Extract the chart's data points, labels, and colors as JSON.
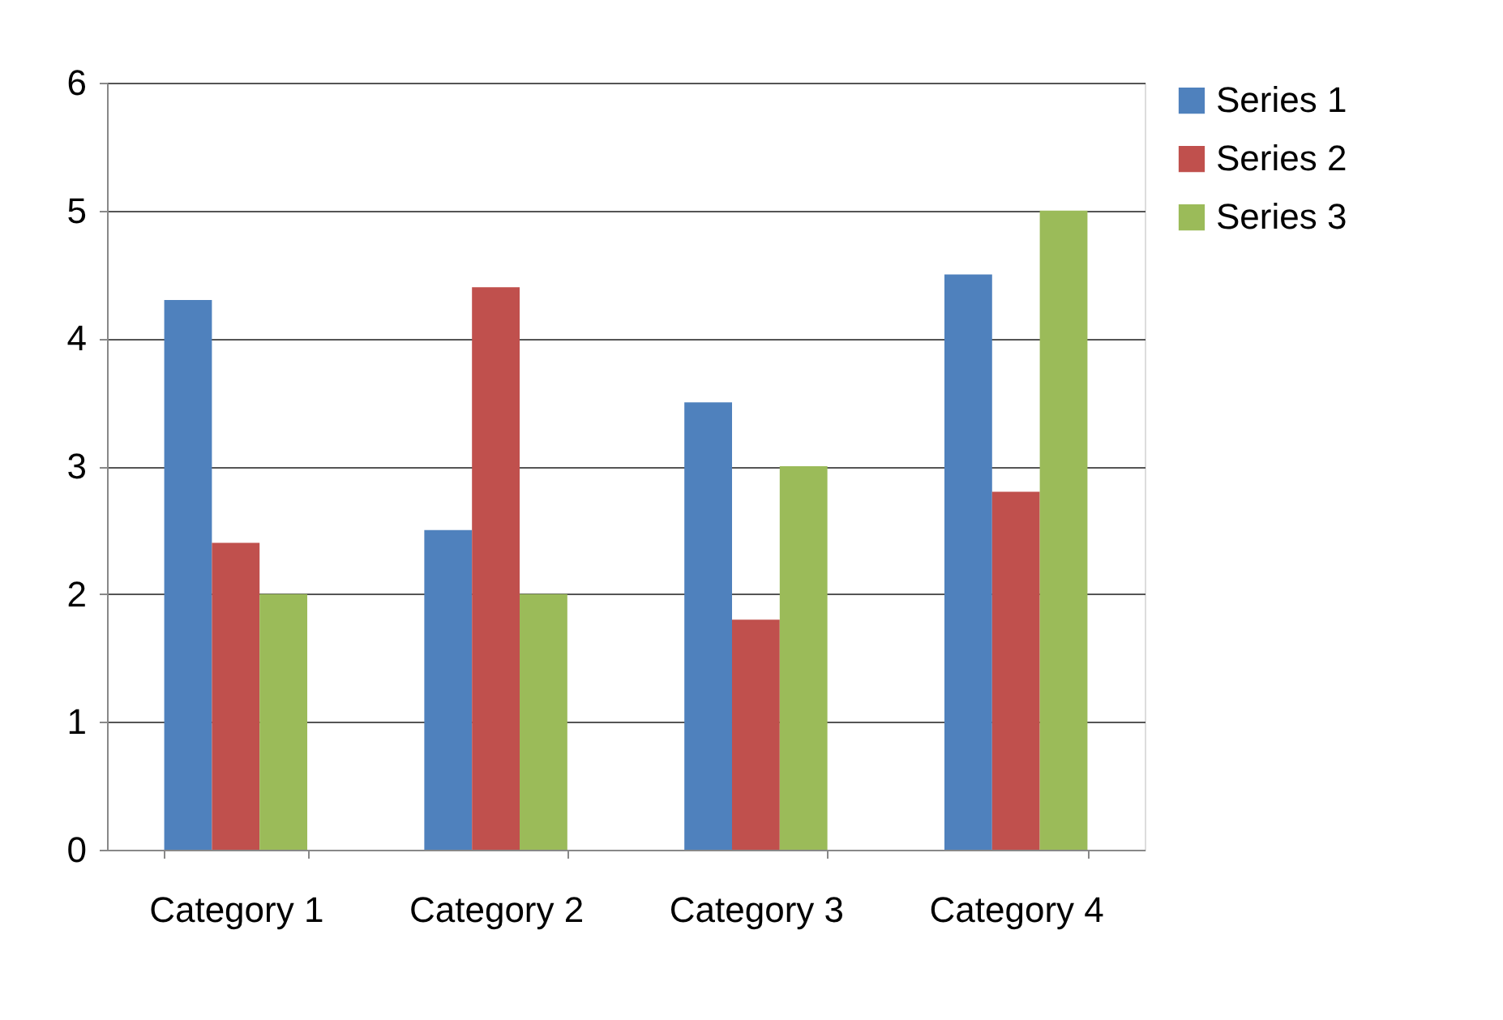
{
  "chart_data": {
    "type": "bar",
    "categories": [
      "Category 1",
      "Category 2",
      "Category 3",
      "Category 4"
    ],
    "series": [
      {
        "name": "Series 1",
        "color": "#4f81bd",
        "values": [
          4.3,
          2.5,
          3.5,
          4.5
        ]
      },
      {
        "name": "Series 2",
        "color": "#c0504d",
        "values": [
          2.4,
          4.4,
          1.8,
          2.8
        ]
      },
      {
        "name": "Series 3",
        "color": "#9bbb59",
        "values": [
          2,
          2,
          3,
          5
        ]
      }
    ],
    "ylim": [
      0,
      6
    ],
    "yticks": [
      0,
      1,
      2,
      3,
      4,
      5,
      6
    ],
    "grid": "y",
    "legend": "right"
  }
}
